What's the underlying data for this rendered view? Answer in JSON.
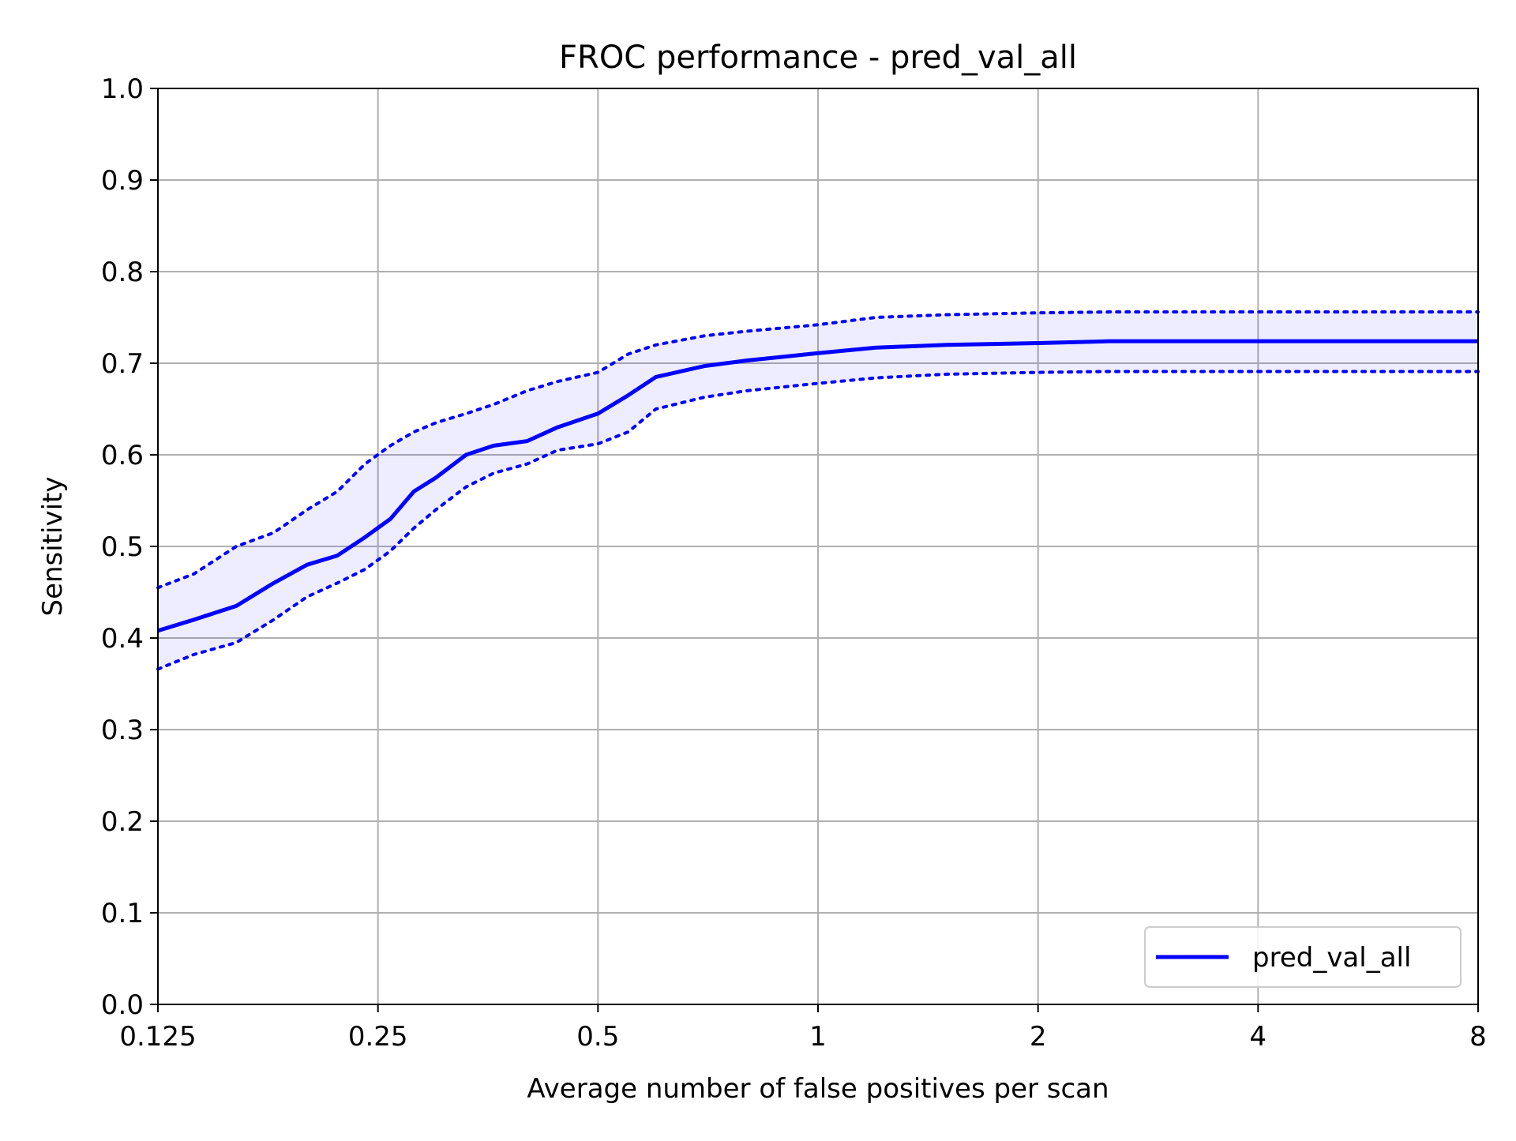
{
  "chart_data": {
    "type": "line",
    "title": "FROC performance - pred_val_all",
    "xlabel": "Average number of false positives per scan",
    "ylabel": "Sensitivity",
    "x_scale": "log2",
    "xlim": [
      0.125,
      8
    ],
    "ylim": [
      0.0,
      1.0
    ],
    "x_ticks": [
      0.125,
      0.25,
      0.5,
      1,
      2,
      4,
      8
    ],
    "x_tick_labels": [
      "0.125",
      "0.25",
      "0.5",
      "1",
      "2",
      "4",
      "8"
    ],
    "y_ticks": [
      0.0,
      0.1,
      0.2,
      0.3,
      0.4,
      0.5,
      0.6,
      0.7,
      0.8,
      0.9,
      1.0
    ],
    "y_tick_labels": [
      "0.0",
      "0.1",
      "0.2",
      "0.3",
      "0.4",
      "0.5",
      "0.6",
      "0.7",
      "0.8",
      "0.9",
      "1.0"
    ],
    "grid": true,
    "legend_position": "bottom-right",
    "series": [
      {
        "name": "pred_val_all",
        "color": "#0000ff",
        "x": [
          0.125,
          0.14,
          0.16,
          0.18,
          0.2,
          0.22,
          0.24,
          0.26,
          0.28,
          0.3,
          0.33,
          0.36,
          0.4,
          0.44,
          0.5,
          0.55,
          0.6,
          0.7,
          0.8,
          1.0,
          1.2,
          1.5,
          2.0,
          2.5,
          3.0,
          4.0,
          8.0
        ],
        "y": [
          0.408,
          0.42,
          0.435,
          0.46,
          0.48,
          0.49,
          0.51,
          0.53,
          0.56,
          0.575,
          0.6,
          0.61,
          0.615,
          0.63,
          0.645,
          0.665,
          0.685,
          0.697,
          0.703,
          0.711,
          0.717,
          0.72,
          0.722,
          0.724,
          0.724,
          0.724,
          0.724
        ],
        "upper": [
          0.455,
          0.47,
          0.5,
          0.515,
          0.54,
          0.56,
          0.59,
          0.61,
          0.625,
          0.635,
          0.645,
          0.655,
          0.67,
          0.68,
          0.69,
          0.71,
          0.72,
          0.73,
          0.735,
          0.742,
          0.75,
          0.753,
          0.755,
          0.756,
          0.756,
          0.756,
          0.756
        ],
        "lower": [
          0.366,
          0.382,
          0.395,
          0.42,
          0.445,
          0.46,
          0.475,
          0.495,
          0.52,
          0.54,
          0.565,
          0.58,
          0.59,
          0.605,
          0.612,
          0.625,
          0.65,
          0.663,
          0.67,
          0.678,
          0.684,
          0.688,
          0.69,
          0.691,
          0.691,
          0.691,
          0.691
        ]
      }
    ]
  }
}
